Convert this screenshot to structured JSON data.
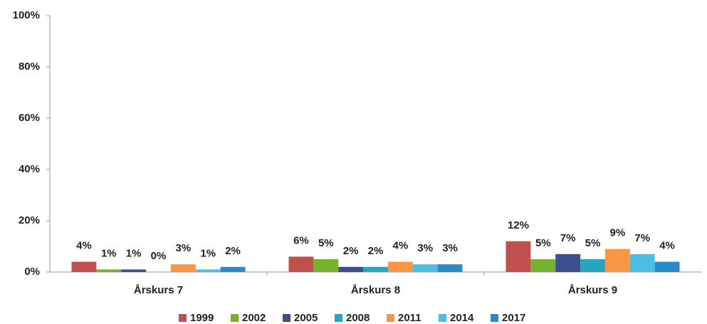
{
  "chart_data": {
    "type": "bar",
    "categories": [
      "Årskurs 7",
      "Årskurs 8",
      "Årskurs 9"
    ],
    "series": [
      {
        "name": "1999",
        "color": "#c0504d",
        "values": [
          4,
          6,
          12
        ],
        "value_labels": [
          "4%",
          "6%",
          "12%"
        ]
      },
      {
        "name": "2002",
        "color": "#77b22e",
        "values": [
          1,
          5,
          5
        ],
        "value_labels": [
          "1%",
          "5%",
          "5%"
        ]
      },
      {
        "name": "2005",
        "color": "#3b4f8f",
        "values": [
          1,
          2,
          7
        ],
        "value_labels": [
          "1%",
          "2%",
          "7%"
        ]
      },
      {
        "name": "2008",
        "color": "#26a6bf",
        "values": [
          0,
          2,
          5
        ],
        "value_labels": [
          "0%",
          "2%",
          "5%"
        ]
      },
      {
        "name": "2011",
        "color": "#f79646",
        "values": [
          3,
          4,
          9
        ],
        "value_labels": [
          "3%",
          "4%",
          "9%"
        ]
      },
      {
        "name": "2014",
        "color": "#4bbfe3",
        "values": [
          1,
          3,
          7
        ],
        "value_labels": [
          "1%",
          "3%",
          "7%"
        ]
      },
      {
        "name": "2017",
        "color": "#2b8ac6",
        "values": [
          2,
          3,
          4
        ],
        "value_labels": [
          "2%",
          "3%",
          "4%"
        ]
      }
    ],
    "ylim": [
      0,
      100
    ],
    "yticks": [
      {
        "value": 0,
        "label": "0%"
      },
      {
        "value": 20,
        "label": "20%"
      },
      {
        "value": 40,
        "label": "40%"
      },
      {
        "value": 60,
        "label": "60%"
      },
      {
        "value": 80,
        "label": "80%"
      },
      {
        "value": 100,
        "label": "100%"
      }
    ],
    "grid": false,
    "legend": "bottom"
  }
}
